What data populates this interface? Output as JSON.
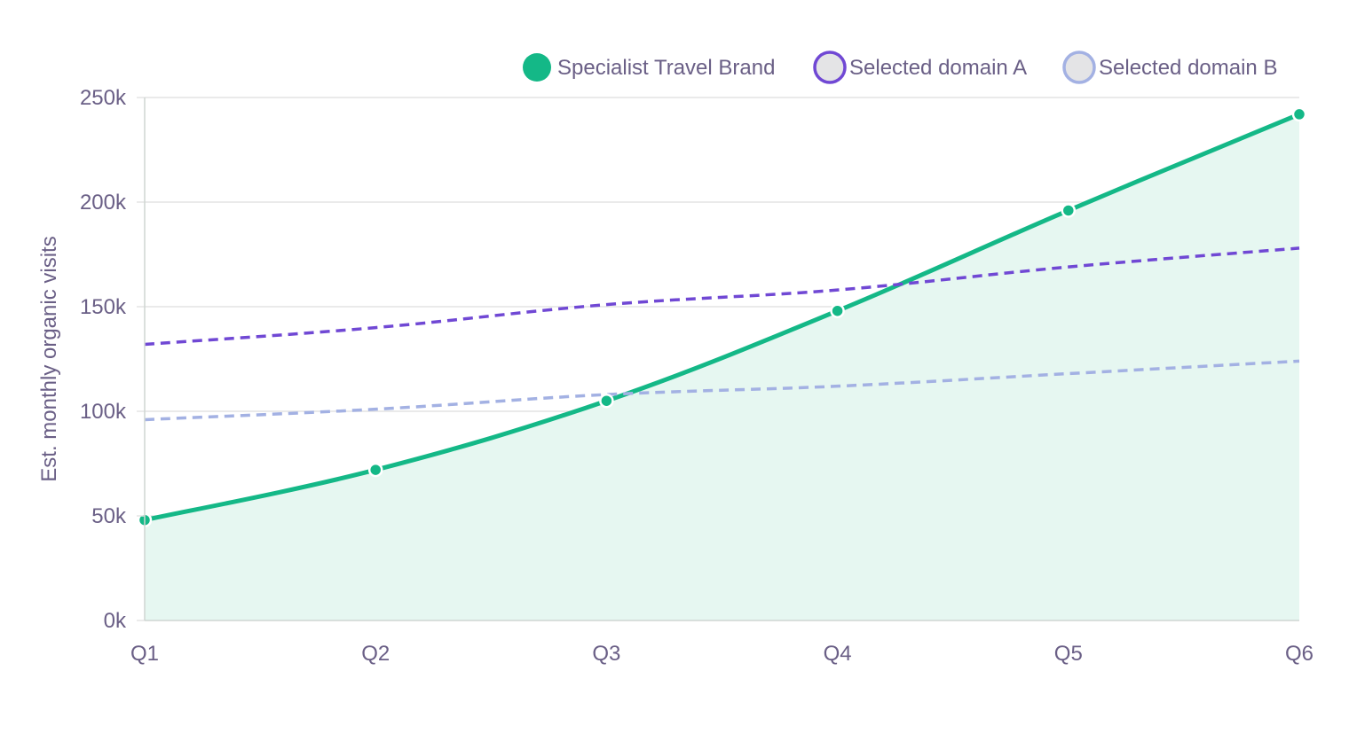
{
  "chart_data": {
    "type": "line",
    "title": "",
    "xlabel": "",
    "ylabel": "Est. monthly organic visits",
    "categories": [
      "Q1",
      "Q2",
      "Q3",
      "Q4",
      "Q5",
      "Q6"
    ],
    "ylim": [
      0,
      250000
    ],
    "yticks": [
      0,
      50000,
      100000,
      150000,
      200000,
      250000
    ],
    "ytick_labels": [
      "0k",
      "50k",
      "100k",
      "150k",
      "200k",
      "250k"
    ],
    "grid": true,
    "legend_position": "top-right",
    "series": [
      {
        "name": "Specialist Travel Brand",
        "values": [
          48000,
          72000,
          105000,
          148000,
          196000,
          242000
        ],
        "style": "solid-area",
        "color": "#14b887",
        "fill": "#e6f7f1"
      },
      {
        "name": "Selected domain A",
        "values": [
          132000,
          140000,
          151000,
          158000,
          169000,
          178000
        ],
        "style": "dashed",
        "color": "#7048d4"
      },
      {
        "name": "Selected domain B",
        "values": [
          96000,
          101000,
          108000,
          112000,
          118000,
          124000
        ],
        "style": "dashed",
        "color": "#a3b1e3"
      }
    ]
  },
  "colors": {
    "text": "#6a5f86",
    "grid": "#e4e4e4",
    "axis": "#cfd5d2",
    "legend_swatch_fill": "#e4e4e6"
  }
}
